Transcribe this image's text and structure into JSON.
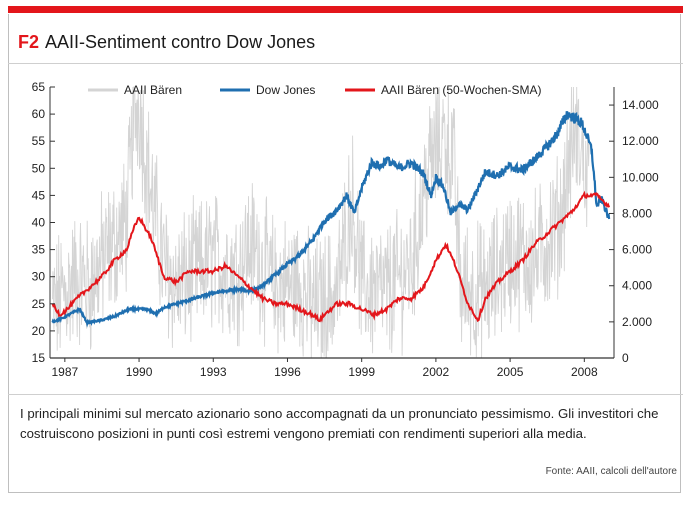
{
  "header": {
    "figure_code": "F2",
    "title": "AAII-Sentiment contro Dow Jones"
  },
  "caption": "I principali minimi sul mercato azionario sono accompagnati da un pronunciato pessimismo. Gli investitori che costruiscono posizioni in punti così estremi vengono premiati con rendimenti superiori alla media.",
  "source": "Fonte: AAII, calcoli dell'autore",
  "colors": {
    "accent": "#e3161b",
    "bears_weekly": "#d4d4d4",
    "dow": "#1f6fb0",
    "bears_sma": "#e3161b"
  },
  "chart_data": {
    "type": "line",
    "legend_position": "top",
    "x_ticks": [
      "1987",
      "1990",
      "1993",
      "1996",
      "1999",
      "2002",
      "2005",
      "2008"
    ],
    "left_axis": {
      "ticks": [
        15,
        20,
        25,
        30,
        35,
        40,
        45,
        50,
        55,
        60,
        65
      ],
      "ylim": [
        15,
        65
      ]
    },
    "right_axis": {
      "ticks": [
        "0",
        "2.000",
        "4.000",
        "6.000",
        "8.000",
        "10.000",
        "12.000",
        "14.000"
      ],
      "ylim": [
        0,
        15000
      ]
    },
    "series": [
      {
        "name": "AAII Bären",
        "axis": "left",
        "style": "weekly noisy",
        "x": [
          1986.5,
          1987.5,
          1988.0,
          1988.5,
          1989.0,
          1989.5,
          1989.8,
          1990.0,
          1990.5,
          1991.0,
          1991.5,
          1992.0,
          1993.0,
          1994.0,
          1994.5,
          1995.5,
          1996.5,
          1997.0,
          1998.0,
          1998.6,
          1999.0,
          2000.0,
          2001.0,
          2001.7,
          2002.3,
          2002.7,
          2003.0,
          2004.0,
          2005.0,
          2006.0,
          2007.0,
          2007.6,
          2008.2
        ],
        "values": [
          24,
          30,
          28,
          33,
          36,
          40,
          60,
          62,
          45,
          32,
          28,
          30,
          33,
          31,
          36,
          28,
          29,
          24,
          27,
          45,
          28,
          27,
          32,
          50,
          56,
          52,
          28,
          27,
          34,
          33,
          40,
          57,
          47
        ]
      },
      {
        "name": "Dow Jones",
        "axis": "right",
        "x": [
          1986.5,
          1986.9,
          1987.3,
          1987.6,
          1987.9,
          1988.5,
          1989.0,
          1989.6,
          1990.3,
          1990.7,
          1991.0,
          1991.5,
          1992.0,
          1993.0,
          1994.0,
          1994.5,
          1995.0,
          1995.5,
          1996.0,
          1996.5,
          1997.0,
          1997.5,
          1998.0,
          1998.4,
          1998.7,
          1999.0,
          1999.4,
          1999.8,
          2000.0,
          2000.5,
          2001.0,
          2001.5,
          2001.8,
          2002.0,
          2002.3,
          2002.6,
          2002.9,
          2003.3,
          2003.7,
          2004.0,
          2004.5,
          2005.0,
          2005.5,
          2006.0,
          2006.5,
          2006.9,
          2007.3,
          2007.6,
          2007.9,
          2008.1,
          2008.3,
          2008.5,
          2008.7,
          2009.0
        ],
        "values": [
          2000,
          2200,
          2500,
          2700,
          1950,
          2100,
          2300,
          2700,
          2700,
          2450,
          2800,
          3000,
          3200,
          3600,
          3800,
          3700,
          4000,
          4600,
          5200,
          5700,
          6500,
          7600,
          8200,
          9000,
          8000,
          9400,
          10800,
          10600,
          11000,
          10500,
          10800,
          10200,
          9000,
          10000,
          9500,
          8000,
          8500,
          8200,
          9400,
          10300,
          10100,
          10600,
          10400,
          11000,
          11700,
          12400,
          13500,
          13300,
          13000,
          12300,
          11500,
          8400,
          8800,
          7700
        ]
      },
      {
        "name": "AAII Bären (50-Wochen-SMA)",
        "axis": "left",
        "x": [
          1986.5,
          1986.8,
          1987.1,
          1987.5,
          1988.0,
          1988.5,
          1989.0,
          1989.5,
          1989.8,
          1990.0,
          1990.5,
          1991.0,
          1991.5,
          1992.0,
          1992.5,
          1993.0,
          1993.5,
          1994.0,
          1994.5,
          1995.0,
          1995.5,
          1996.0,
          1996.5,
          1997.0,
          1997.3,
          1997.5,
          1998.0,
          1998.5,
          1999.0,
          1999.5,
          2000.0,
          2000.5,
          2001.0,
          2001.5,
          2002.0,
          2002.4,
          2002.8,
          2003.3,
          2003.7,
          2004.0,
          2004.5,
          2005.0,
          2005.5,
          2006.0,
          2006.5,
          2007.0,
          2007.5,
          2008.0,
          2008.5,
          2009.0
        ],
        "values": [
          25,
          23,
          24,
          26,
          28,
          30,
          33,
          35,
          39,
          41,
          37,
          30,
          29,
          31,
          31,
          31,
          32,
          30,
          28,
          26,
          25,
          25,
          24,
          23,
          22,
          23,
          25,
          25,
          24,
          23,
          24,
          26,
          26,
          28,
          33,
          36,
          32,
          25,
          22,
          26,
          29,
          31,
          33,
          36,
          38,
          40,
          42,
          45,
          45,
          43
        ]
      }
    ]
  }
}
